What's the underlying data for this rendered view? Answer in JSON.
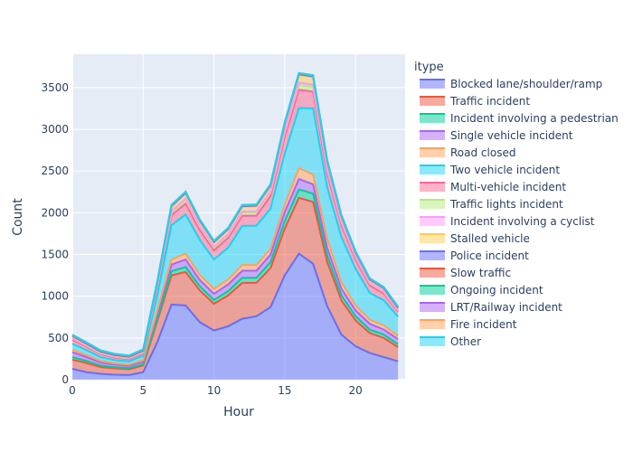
{
  "chart_data": {
    "type": "area",
    "stacked": true,
    "xlabel": "Hour",
    "ylabel": "Count",
    "xlim": [
      0,
      23.5
    ],
    "ylim": [
      0,
      3900
    ],
    "xticks": [
      0,
      5,
      10,
      15,
      20
    ],
    "yticks": [
      0,
      500,
      1000,
      1500,
      2000,
      2500,
      3000,
      3500
    ],
    "grid": true,
    "legend": {
      "title": "itype",
      "position": "right"
    },
    "x": [
      0,
      1,
      2,
      3,
      4,
      5,
      6,
      7,
      8,
      9,
      10,
      11,
      12,
      13,
      14,
      15,
      16,
      17,
      18,
      19,
      20,
      21,
      22,
      23
    ],
    "series": [
      {
        "name": "Blocked lane/shoulder/ramp",
        "color": "#636efa",
        "values": [
          130,
          90,
          70,
          60,
          55,
          90,
          450,
          900,
          890,
          690,
          590,
          640,
          730,
          760,
          870,
          1250,
          1510,
          1390,
          880,
          540,
          400,
          320,
          270,
          220
        ]
      },
      {
        "name": "Traffic incident",
        "color": "#ef553b",
        "values": [
          110,
          110,
          80,
          75,
          70,
          80,
          250,
          350,
          400,
          380,
          320,
          370,
          430,
          400,
          470,
          560,
          670,
          740,
          530,
          410,
          310,
          240,
          230,
          170
        ]
      },
      {
        "name": "Incident involving a pedestrian",
        "color": "#00cc96",
        "values": [
          30,
          25,
          20,
          15,
          15,
          15,
          30,
          50,
          60,
          50,
          45,
          50,
          60,
          60,
          70,
          90,
          100,
          100,
          80,
          60,
          50,
          40,
          40,
          35
        ]
      },
      {
        "name": "Single vehicle incident",
        "color": "#ab63fa",
        "values": [
          60,
          45,
          35,
          30,
          25,
          30,
          60,
          80,
          90,
          75,
          75,
          80,
          85,
          85,
          90,
          110,
          125,
          110,
          90,
          80,
          70,
          70,
          60,
          60
        ]
      },
      {
        "name": "Road closed",
        "color": "#ffa15a",
        "values": [
          30,
          25,
          20,
          15,
          15,
          20,
          40,
          60,
          70,
          60,
          60,
          60,
          70,
          70,
          70,
          90,
          130,
          120,
          110,
          80,
          60,
          50,
          50,
          40
        ]
      },
      {
        "name": "Two vehicle incident",
        "color": "#19d3f3",
        "values": [
          70,
          60,
          45,
          40,
          40,
          50,
          180,
          410,
          470,
          420,
          350,
          380,
          470,
          470,
          480,
          610,
          720,
          790,
          610,
          540,
          440,
          320,
          300,
          230
        ]
      },
      {
        "name": "Multi-vehicle incident",
        "color": "#ff6692",
        "values": [
          50,
          40,
          35,
          30,
          25,
          30,
          90,
          120,
          130,
          120,
          110,
          120,
          120,
          120,
          150,
          200,
          220,
          200,
          170,
          140,
          110,
          90,
          80,
          60
        ]
      },
      {
        "name": "Traffic lights incident",
        "color": "#b6e880",
        "values": [
          15,
          12,
          10,
          10,
          10,
          12,
          20,
          30,
          40,
          35,
          30,
          30,
          35,
          40,
          40,
          50,
          60,
          60,
          45,
          35,
          30,
          25,
          20,
          15
        ]
      },
      {
        "name": "Incident involving a cyclist",
        "color": "#ff97ff",
        "values": [
          5,
          5,
          5,
          5,
          5,
          5,
          10,
          20,
          20,
          15,
          15,
          15,
          15,
          15,
          20,
          25,
          25,
          25,
          20,
          15,
          10,
          10,
          10,
          5
        ]
      },
      {
        "name": "Stalled vehicle",
        "color": "#fecb52",
        "values": [
          20,
          15,
          12,
          10,
          10,
          12,
          30,
          50,
          60,
          50,
          45,
          50,
          55,
          55,
          60,
          75,
          90,
          90,
          70,
          50,
          40,
          30,
          30,
          20
        ]
      },
      {
        "name": "Police incident",
        "color": "#636efa",
        "values": [
          5,
          5,
          5,
          5,
          5,
          5,
          5,
          10,
          10,
          10,
          10,
          10,
          10,
          10,
          10,
          10,
          10,
          10,
          10,
          10,
          5,
          5,
          5,
          5
        ]
      },
      {
        "name": "Slow traffic",
        "color": "#ef553b",
        "values": [
          5,
          5,
          5,
          5,
          5,
          5,
          5,
          5,
          5,
          5,
          5,
          5,
          5,
          5,
          5,
          5,
          5,
          5,
          5,
          5,
          5,
          5,
          5,
          5
        ]
      },
      {
        "name": "Ongoing incident",
        "color": "#00cc96",
        "values": [
          3,
          3,
          3,
          3,
          3,
          3,
          3,
          3,
          3,
          3,
          3,
          3,
          3,
          3,
          3,
          3,
          3,
          3,
          3,
          3,
          3,
          3,
          3,
          3
        ]
      },
      {
        "name": "LRT/Railway incident",
        "color": "#ab63fa",
        "values": [
          2,
          2,
          2,
          2,
          2,
          2,
          2,
          2,
          2,
          2,
          2,
          2,
          2,
          2,
          2,
          2,
          2,
          2,
          2,
          2,
          2,
          2,
          2,
          2
        ]
      },
      {
        "name": "Fire incident",
        "color": "#ffa15a",
        "values": [
          3,
          3,
          3,
          3,
          3,
          3,
          3,
          3,
          3,
          3,
          3,
          3,
          3,
          3,
          3,
          3,
          3,
          3,
          3,
          3,
          3,
          3,
          3,
          3
        ]
      },
      {
        "name": "Other",
        "color": "#19d3f3",
        "values": [
          2,
          2,
          2,
          2,
          2,
          2,
          2,
          2,
          2,
          2,
          2,
          2,
          2,
          2,
          2,
          2,
          2,
          2,
          2,
          2,
          2,
          2,
          2,
          2
        ]
      }
    ]
  }
}
